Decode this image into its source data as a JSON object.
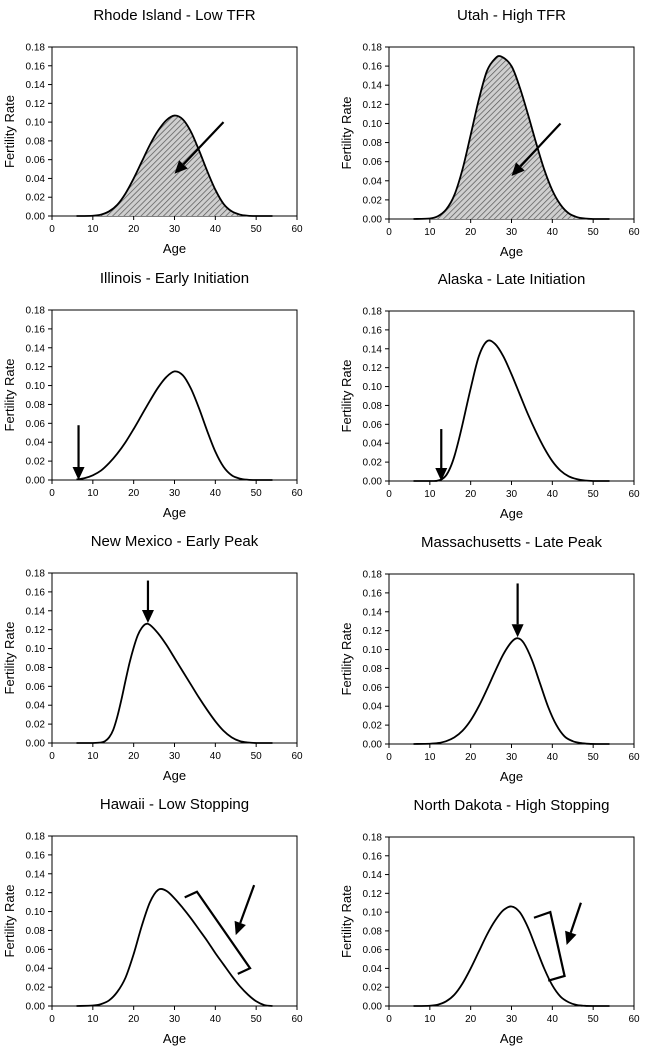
{
  "chart_data": [
    {
      "type": "area",
      "title": "Rhode Island - Low TFR",
      "xlabel": "Age",
      "ylabel": "Fertility Rate",
      "xlim": [
        0,
        60
      ],
      "ylim": [
        0,
        0.18
      ],
      "xticks": [
        "0",
        "10",
        "20",
        "30",
        "40",
        "50",
        "60"
      ],
      "yticks": [
        "0.00",
        "0.02",
        "0.04",
        "0.06",
        "0.08",
        "0.10",
        "0.12",
        "0.14",
        "0.16",
        "0.18"
      ],
      "shaded": true,
      "series": [
        {
          "x": [
            6,
            10,
            12,
            14,
            16,
            18,
            20,
            22,
            24,
            26,
            28,
            30,
            32,
            34,
            36,
            38,
            40,
            42,
            44,
            46,
            48,
            50,
            54
          ],
          "y": [
            0,
            0.0003,
            0.0015,
            0.005,
            0.012,
            0.024,
            0.04,
            0.058,
            0.076,
            0.091,
            0.102,
            0.107,
            0.103,
            0.09,
            0.07,
            0.048,
            0.028,
            0.013,
            0.005,
            0.0015,
            0.0003,
            0,
            0
          ]
        }
      ],
      "annotation": {
        "kind": "arrow",
        "from": [
          42,
          0.1
        ],
        "to": [
          30,
          0.045
        ]
      }
    },
    {
      "type": "area",
      "title": "Utah - High TFR",
      "xlabel": "Age",
      "ylabel": "Fertility Rate",
      "xlim": [
        0,
        60
      ],
      "ylim": [
        0,
        0.18
      ],
      "xticks": [
        "0",
        "10",
        "20",
        "30",
        "40",
        "50",
        "60"
      ],
      "yticks": [
        "0.00",
        "0.02",
        "0.04",
        "0.06",
        "0.08",
        "0.10",
        "0.12",
        "0.14",
        "0.16",
        "0.18"
      ],
      "shaded": true,
      "series": [
        {
          "x": [
            6,
            10,
            12,
            14,
            16,
            18,
            20,
            22,
            24,
            26,
            27.5,
            30,
            32,
            34,
            36,
            38,
            40,
            42,
            44,
            46,
            48,
            50,
            54
          ],
          "y": [
            0,
            0.0005,
            0.003,
            0.01,
            0.025,
            0.052,
            0.088,
            0.125,
            0.155,
            0.168,
            0.17,
            0.16,
            0.138,
            0.11,
            0.08,
            0.052,
            0.03,
            0.015,
            0.006,
            0.002,
            0.0005,
            0,
            0
          ]
        }
      ],
      "annotation": {
        "kind": "arrow",
        "from": [
          42,
          0.1
        ],
        "to": [
          30,
          0.045
        ]
      }
    },
    {
      "type": "line",
      "title": "Illinois - Early Initiation",
      "xlabel": "Age",
      "ylabel": "Fertility Rate",
      "xlim": [
        0,
        60
      ],
      "ylim": [
        0,
        0.18
      ],
      "xticks": [
        "0",
        "10",
        "20",
        "30",
        "40",
        "50",
        "60"
      ],
      "yticks": [
        "0.00",
        "0.02",
        "0.04",
        "0.06",
        "0.08",
        "0.10",
        "0.12",
        "0.14",
        "0.16",
        "0.18"
      ],
      "shaded": false,
      "series": [
        {
          "x": [
            6,
            8,
            10,
            12,
            14,
            16,
            18,
            20,
            22,
            24,
            26,
            28,
            30,
            32,
            34,
            36,
            38,
            40,
            42,
            44,
            46,
            48,
            50,
            54
          ],
          "y": [
            0.0005,
            0.002,
            0.005,
            0.01,
            0.018,
            0.028,
            0.04,
            0.054,
            0.069,
            0.084,
            0.098,
            0.109,
            0.115,
            0.111,
            0.097,
            0.076,
            0.052,
            0.03,
            0.014,
            0.005,
            0.0015,
            0.0003,
            0,
            0
          ]
        }
      ],
      "annotation": {
        "kind": "arrow",
        "from": [
          6.5,
          0.058
        ],
        "to": [
          6.5,
          0.0
        ]
      }
    },
    {
      "type": "line",
      "title": "Alaska - Late Initiation",
      "xlabel": "Age",
      "ylabel": "Fertility Rate",
      "xlim": [
        0,
        60
      ],
      "ylim": [
        0,
        0.18
      ],
      "xticks": [
        "0",
        "10",
        "20",
        "30",
        "40",
        "50",
        "60"
      ],
      "yticks": [
        "0.00",
        "0.02",
        "0.04",
        "0.06",
        "0.08",
        "0.10",
        "0.12",
        "0.14",
        "0.16",
        "0.18"
      ],
      "shaded": false,
      "series": [
        {
          "x": [
            6,
            11,
            12,
            13,
            14,
            15,
            16,
            17,
            18,
            20,
            22,
            24,
            26,
            28,
            30,
            32,
            34,
            36,
            38,
            40,
            42,
            44,
            46,
            48,
            50,
            54
          ],
          "y": [
            0,
            0,
            0.0005,
            0.002,
            0.006,
            0.014,
            0.026,
            0.042,
            0.06,
            0.098,
            0.132,
            0.148,
            0.145,
            0.132,
            0.113,
            0.092,
            0.071,
            0.052,
            0.035,
            0.021,
            0.011,
            0.005,
            0.002,
            0.0005,
            0,
            0
          ]
        }
      ],
      "annotation": {
        "kind": "arrow",
        "from": [
          12.8,
          0.055
        ],
        "to": [
          12.8,
          0.0
        ]
      }
    },
    {
      "type": "line",
      "title": "New Mexico - Early Peak",
      "xlabel": "Age",
      "ylabel": "Fertility Rate",
      "xlim": [
        0,
        60
      ],
      "ylim": [
        0,
        0.18
      ],
      "xticks": [
        "0",
        "10",
        "20",
        "30",
        "40",
        "50",
        "60"
      ],
      "yticks": [
        "0.00",
        "0.02",
        "0.04",
        "0.06",
        "0.08",
        "0.10",
        "0.12",
        "0.14",
        "0.16",
        "0.18"
      ],
      "shaded": false,
      "series": [
        {
          "x": [
            6,
            10,
            12,
            13,
            14,
            15,
            16,
            17,
            18,
            19,
            20,
            21,
            22,
            23,
            24,
            26,
            28,
            30,
            32,
            34,
            36,
            38,
            40,
            42,
            44,
            46,
            48,
            50,
            54
          ],
          "y": [
            0,
            0,
            0.0005,
            0.002,
            0.006,
            0.014,
            0.028,
            0.046,
            0.066,
            0.085,
            0.101,
            0.114,
            0.122,
            0.126,
            0.125,
            0.116,
            0.104,
            0.09,
            0.076,
            0.062,
            0.048,
            0.035,
            0.023,
            0.013,
            0.006,
            0.002,
            0.0005,
            0,
            0
          ]
        }
      ],
      "annotation": {
        "kind": "arrow",
        "from": [
          23.5,
          0.172
        ],
        "to": [
          23.5,
          0.127
        ]
      }
    },
    {
      "type": "line",
      "title": "Massachusetts - Late Peak",
      "xlabel": "Age",
      "ylabel": "Fertility Rate",
      "xlim": [
        0,
        60
      ],
      "ylim": [
        0,
        0.18
      ],
      "xticks": [
        "0",
        "10",
        "20",
        "30",
        "40",
        "50",
        "60"
      ],
      "yticks": [
        "0.00",
        "0.02",
        "0.04",
        "0.06",
        "0.08",
        "0.10",
        "0.12",
        "0.14",
        "0.16",
        "0.18"
      ],
      "shaded": false,
      "series": [
        {
          "x": [
            6,
            10,
            12,
            14,
            16,
            18,
            20,
            22,
            24,
            26,
            28,
            30,
            31.5,
            33,
            35,
            37,
            39,
            41,
            43,
            45,
            47,
            49,
            51,
            54
          ],
          "y": [
            0,
            0.0003,
            0.001,
            0.003,
            0.007,
            0.014,
            0.025,
            0.04,
            0.058,
            0.077,
            0.095,
            0.108,
            0.112,
            0.107,
            0.089,
            0.064,
            0.039,
            0.02,
            0.008,
            0.003,
            0.001,
            0.0002,
            0,
            0
          ]
        }
      ],
      "annotation": {
        "kind": "arrow",
        "from": [
          31.5,
          0.17
        ],
        "to": [
          31.5,
          0.113
        ]
      }
    },
    {
      "type": "line",
      "title": "Hawaii - Low Stopping",
      "xlabel": "Age",
      "ylabel": "Fertility Rate",
      "xlim": [
        0,
        60
      ],
      "ylim": [
        0,
        0.18
      ],
      "xticks": [
        "0",
        "10",
        "20",
        "30",
        "40",
        "50",
        "60"
      ],
      "yticks": [
        "0.00",
        "0.02",
        "0.04",
        "0.06",
        "0.08",
        "0.10",
        "0.12",
        "0.14",
        "0.16",
        "0.18"
      ],
      "shaded": false,
      "series": [
        {
          "x": [
            6,
            10,
            12,
            14,
            16,
            18,
            20,
            22,
            24,
            26,
            28,
            30,
            32,
            34,
            36,
            38,
            40,
            42,
            44,
            46,
            48,
            50,
            52,
            54
          ],
          "y": [
            0,
            0.0005,
            0.002,
            0.006,
            0.015,
            0.03,
            0.055,
            0.085,
            0.11,
            0.123,
            0.122,
            0.114,
            0.104,
            0.093,
            0.081,
            0.069,
            0.056,
            0.044,
            0.032,
            0.021,
            0.012,
            0.005,
            0.001,
            0
          ]
        }
      ],
      "annotation": {
        "kind": "bracket-arrow",
        "bracket": [
          [
            32.5,
            0.115
          ],
          [
            35.5,
            0.121
          ],
          [
            48.5,
            0.04
          ],
          [
            45.5,
            0.034
          ]
        ],
        "from": [
          49.5,
          0.128
        ],
        "to": [
          45,
          0.075
        ]
      }
    },
    {
      "type": "line",
      "title": "North Dakota - High Stopping",
      "xlabel": "Age",
      "ylabel": "Fertility Rate",
      "xlim": [
        0,
        60
      ],
      "ylim": [
        0,
        0.18
      ],
      "xticks": [
        "0",
        "10",
        "20",
        "30",
        "40",
        "50",
        "60"
      ],
      "yticks": [
        "0.00",
        "0.02",
        "0.04",
        "0.06",
        "0.08",
        "0.10",
        "0.12",
        "0.14",
        "0.16",
        "0.18"
      ],
      "shaded": false,
      "series": [
        {
          "x": [
            6,
            10,
            12,
            14,
            16,
            18,
            20,
            22,
            24,
            26,
            28,
            30,
            32,
            34,
            36,
            38,
            40,
            42,
            44,
            46,
            48,
            50,
            54
          ],
          "y": [
            0,
            0.0003,
            0.0015,
            0.005,
            0.012,
            0.024,
            0.04,
            0.058,
            0.076,
            0.091,
            0.102,
            0.106,
            0.1,
            0.084,
            0.062,
            0.04,
            0.022,
            0.01,
            0.004,
            0.001,
            0.0002,
            0,
            0
          ]
        }
      ],
      "annotation": {
        "kind": "bracket-arrow",
        "bracket": [
          [
            35.5,
            0.094
          ],
          [
            39.5,
            0.1
          ],
          [
            43.0,
            0.032
          ],
          [
            39.0,
            0.027
          ]
        ],
        "from": [
          47.0,
          0.11
        ],
        "to": [
          43.5,
          0.065
        ]
      }
    }
  ]
}
